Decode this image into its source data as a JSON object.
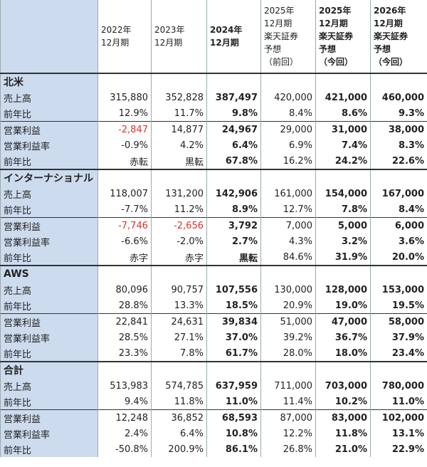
{
  "table": {
    "header": [
      {
        "lines": [],
        "bold": false
      },
      {
        "lines": [
          "2022年",
          "12月期"
        ],
        "bold": false
      },
      {
        "lines": [
          "2023年",
          "12月期"
        ],
        "bold": false
      },
      {
        "lines": [
          "2024年",
          "12月期"
        ],
        "bold": true
      },
      {
        "lines": [
          "2025年",
          "12月期",
          "楽天証券",
          "予想",
          "（前回）"
        ],
        "bold": false
      },
      {
        "lines": [
          "2025年",
          "12月期",
          "楽天証券",
          "予想",
          "（今回）"
        ],
        "bold": true
      },
      {
        "lines": [
          "2026年",
          "12月期",
          "楽天証券",
          "予想",
          "（今回）"
        ],
        "bold": true
      }
    ],
    "negative_color": "#e0302a",
    "sections": [
      {
        "title": "北米",
        "rows": [
          {
            "label": "売上高",
            "values": [
              "315,880",
              "352,828",
              "387,497",
              "420,000",
              "421,000",
              "460,000"
            ],
            "group_start": false,
            "negative_red": false
          },
          {
            "label": "前年比",
            "values": [
              "12.9%",
              "11.7%",
              "9.8%",
              "8.4%",
              "8.6%",
              "9.3%"
            ],
            "group_start": false,
            "negative_red": false
          },
          {
            "label": "営業利益",
            "values": [
              "-2,847",
              "14,877",
              "24,967",
              "29,000",
              "31,000",
              "38,000"
            ],
            "group_start": true,
            "negative_red": true
          },
          {
            "label": "営業利益率",
            "values": [
              "-0.9%",
              "4.2%",
              "6.4%",
              "6.9%",
              "7.4%",
              "8.3%"
            ],
            "group_start": false,
            "negative_red": false
          },
          {
            "label": "前年比",
            "values": [
              "赤転",
              "黒転",
              "67.8%",
              "16.2%",
              "24.2%",
              "22.6%"
            ],
            "group_start": false,
            "negative_red": false
          }
        ]
      },
      {
        "title": "インターナショナル",
        "rows": [
          {
            "label": "売上高",
            "values": [
              "118,007",
              "131,200",
              "142,906",
              "161,000",
              "154,000",
              "167,000"
            ],
            "group_start": false,
            "negative_red": false
          },
          {
            "label": "前年比",
            "values": [
              "-7.7%",
              "11.2%",
              "8.9%",
              "12.7%",
              "7.8%",
              "8.4%"
            ],
            "group_start": false,
            "negative_red": false
          },
          {
            "label": "営業利益",
            "values": [
              "-7,746",
              "-2,656",
              "3,792",
              "7,000",
              "5,000",
              "6,000"
            ],
            "group_start": true,
            "negative_red": true
          },
          {
            "label": "営業利益率",
            "values": [
              "-6.6%",
              "-2.0%",
              "2.7%",
              "4.3%",
              "3.2%",
              "3.6%"
            ],
            "group_start": false,
            "negative_red": false
          },
          {
            "label": "前年比",
            "values": [
              "赤字",
              "赤字",
              "黒転",
              "84.6%",
              "31.9%",
              "20.0%"
            ],
            "group_start": false,
            "negative_red": false
          }
        ]
      },
      {
        "title": "AWS",
        "rows": [
          {
            "label": "売上高",
            "values": [
              "80,096",
              "90,757",
              "107,556",
              "130,000",
              "128,000",
              "153,000"
            ],
            "group_start": false,
            "negative_red": false
          },
          {
            "label": "前年比",
            "values": [
              "28.8%",
              "13.3%",
              "18.5%",
              "20.9%",
              "19.0%",
              "19.5%"
            ],
            "group_start": false,
            "negative_red": false
          },
          {
            "label": "営業利益",
            "values": [
              "22,841",
              "24,631",
              "39,834",
              "51,000",
              "47,000",
              "58,000"
            ],
            "group_start": true,
            "negative_red": true
          },
          {
            "label": "営業利益率",
            "values": [
              "28.5%",
              "27.1%",
              "37.0%",
              "39.2%",
              "36.7%",
              "37.9%"
            ],
            "group_start": false,
            "negative_red": false
          },
          {
            "label": "前年比",
            "values": [
              "23.3%",
              "7.8%",
              "61.7%",
              "28.0%",
              "18.0%",
              "23.4%"
            ],
            "group_start": false,
            "negative_red": false
          }
        ]
      },
      {
        "title": "合計",
        "rows": [
          {
            "label": "売上高",
            "values": [
              "513,983",
              "574,785",
              "637,959",
              "711,000",
              "703,000",
              "780,000"
            ],
            "group_start": false,
            "negative_red": false
          },
          {
            "label": "前年比",
            "values": [
              "9.4%",
              "11.8%",
              "11.0%",
              "11.4%",
              "10.2%",
              "11.0%"
            ],
            "group_start": false,
            "negative_red": false
          },
          {
            "label": "営業利益",
            "values": [
              "12,248",
              "36,852",
              "68,593",
              "87,000",
              "83,000",
              "102,000"
            ],
            "group_start": true,
            "negative_red": true
          },
          {
            "label": "営業利益率",
            "values": [
              "2.4%",
              "6.4%",
              "10.8%",
              "12.2%",
              "11.8%",
              "13.1%"
            ],
            "group_start": false,
            "negative_red": false
          },
          {
            "label": "前年比",
            "values": [
              "-50.8%",
              "200.9%",
              "86.1%",
              "26.8%",
              "21.0%",
              "22.9%"
            ],
            "group_start": false,
            "negative_red": false
          }
        ]
      }
    ]
  }
}
